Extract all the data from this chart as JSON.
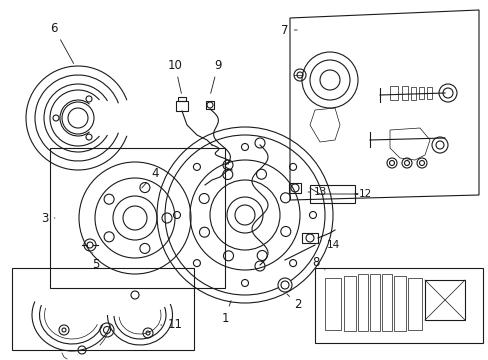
{
  "background_color": "#ffffff",
  "line_color": "#1a1a1a",
  "fig_width": 4.89,
  "fig_height": 3.6,
  "dpi": 100,
  "label_fontsize": 8.5,
  "label_fontsize_small": 7.5
}
